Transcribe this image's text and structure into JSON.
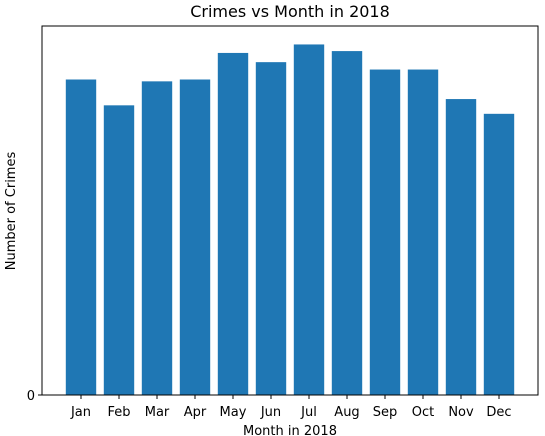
{
  "chart_data": {
    "type": "bar",
    "title": "Crimes vs Month in 2018",
    "xlabel": "Month in 2018",
    "ylabel": "Number of Crimes",
    "categories": [
      "Jan",
      "Feb",
      "Mar",
      "Apr",
      "May",
      "Jun",
      "Jul",
      "Aug",
      "Sep",
      "Oct",
      "Nov",
      "Dec"
    ],
    "values": [
      85.5,
      78.5,
      85.0,
      85.5,
      92.7,
      90.2,
      95.0,
      93.2,
      88.2,
      88.2,
      80.2,
      76.2
    ],
    "y_ticks": [
      "0"
    ],
    "ylim": [
      0,
      100
    ],
    "bar_color": "#1f77b4",
    "grid": false
  }
}
